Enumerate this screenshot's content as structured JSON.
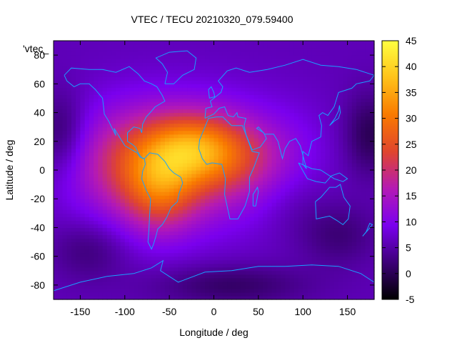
{
  "chart_data": {
    "type": "heatmap",
    "title": "VTEC / TECU 20210320_079.59400",
    "xlabel": "Longitude / deg",
    "ylabel": "Latitude / deg",
    "xlim": [
      -180,
      180
    ],
    "ylim": [
      -90,
      90
    ],
    "xticks": [
      -150,
      -100,
      -50,
      0,
      50,
      100,
      150
    ],
    "yticks": [
      -80,
      -60,
      -40,
      -20,
      0,
      20,
      40,
      60,
      80
    ],
    "legend": {
      "label": "'vtec_",
      "placement": "top-left"
    },
    "colorbar": {
      "min": -5,
      "max": 45,
      "ticks": [
        -5,
        0,
        5,
        10,
        15,
        20,
        25,
        30,
        35,
        40,
        45
      ],
      "colormap": [
        "#000000",
        "#3d0078",
        "#7a00ee",
        "#b41ab4",
        "#e0452d",
        "#f97a00",
        "#ffc21a",
        "#ffff40"
      ]
    },
    "grid": false,
    "overlay": "coastlines",
    "overlay_color": "#1aa0ff",
    "field": {
      "description": "approximate TEC values read from the colour field",
      "background": 6,
      "blobs": [
        {
          "lon": -40,
          "lat": 5,
          "amp": 14,
          "slon": 75,
          "slat": 30
        },
        {
          "lon": -60,
          "lat": -12,
          "amp": 12,
          "slon": 28,
          "slat": 22
        },
        {
          "lon": -25,
          "lat": 16,
          "amp": 13,
          "slon": 35,
          "slat": 16
        },
        {
          "lon": 20,
          "lat": 10,
          "amp": 8,
          "slon": 40,
          "slat": 18
        },
        {
          "lon": -100,
          "lat": 5,
          "amp": 6,
          "slon": 40,
          "slat": 25
        },
        {
          "lon": 90,
          "lat": 0,
          "amp": 2,
          "slon": 30,
          "slat": 30
        }
      ],
      "dips": [
        {
          "lon": -170,
          "lat": 25,
          "amp": 6,
          "slon": 20,
          "slat": 20
        },
        {
          "lon": 175,
          "lat": 25,
          "amp": 6,
          "slon": 20,
          "slat": 20
        },
        {
          "lon": -140,
          "lat": -55,
          "amp": 4,
          "slon": 30,
          "slat": 15
        },
        {
          "lon": 140,
          "lat": -45,
          "amp": 4,
          "slon": 30,
          "slat": 15
        },
        {
          "lon": 20,
          "lat": -80,
          "amp": 5,
          "slon": 60,
          "slat": 10
        },
        {
          "lon": 90,
          "lat": -20,
          "amp": 3,
          "slon": 30,
          "slat": 20
        }
      ]
    }
  }
}
